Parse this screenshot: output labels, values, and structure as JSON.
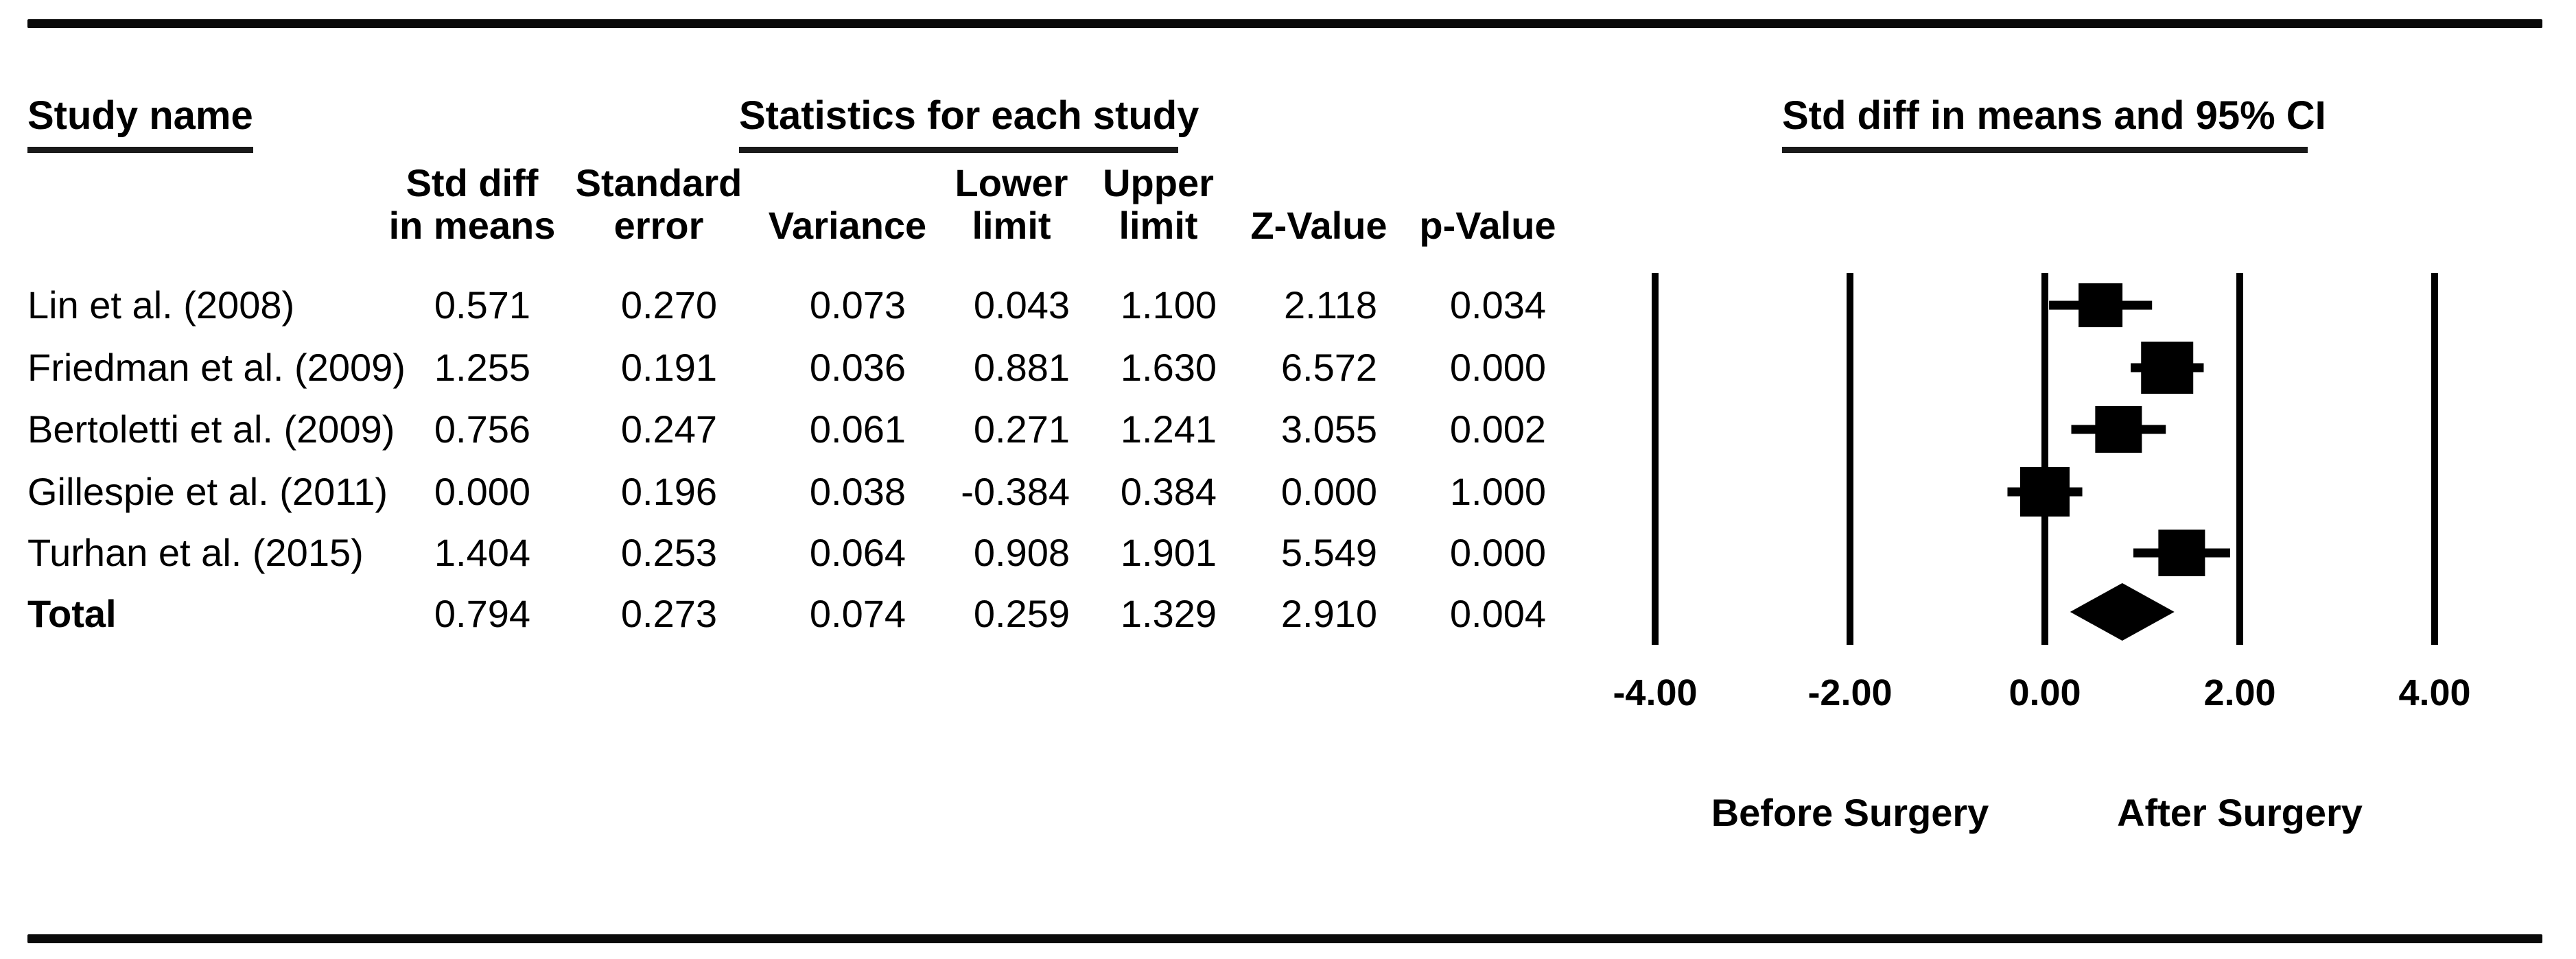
{
  "colors": {
    "ink": "#000000",
    "background": "#ffffff"
  },
  "sections": {
    "study_header": "Study name",
    "statistics_header": "Statistics for each study",
    "plot_header": "Std diff in means and 95% CI"
  },
  "table": {
    "column_headers": [
      {
        "line1": "Std diff",
        "line2": "in means"
      },
      {
        "line1": "Standard",
        "line2": "error"
      },
      {
        "line1": "",
        "line2": "Variance"
      },
      {
        "line1": "Lower",
        "line2": "limit"
      },
      {
        "line1": "Upper",
        "line2": "limit"
      },
      {
        "line1": "",
        "line2": "Z-Value"
      },
      {
        "line1": "",
        "line2": "p-Value"
      }
    ],
    "rows": [
      {
        "study": "Lin et al. (2008)",
        "std_diff": "0.571",
        "standard_error": "0.270",
        "variance": "0.073",
        "lower_limit": "0.043",
        "upper_limit": "1.100",
        "z_value": "2.118",
        "p_value": "0.034",
        "bold": false
      },
      {
        "study": "Friedman et al. (2009)",
        "std_diff": "1.255",
        "standard_error": "0.191",
        "variance": "0.036",
        "lower_limit": "0.881",
        "upper_limit": "1.630",
        "z_value": "6.572",
        "p_value": "0.000",
        "bold": false
      },
      {
        "study": "Bertoletti et al. (2009)",
        "std_diff": "0.756",
        "standard_error": "0.247",
        "variance": "0.061",
        "lower_limit": "0.271",
        "upper_limit": "1.241",
        "z_value": "3.055",
        "p_value": "0.002",
        "bold": false
      },
      {
        "study": "Gillespie et al. (2011)",
        "std_diff": "0.000",
        "standard_error": "0.196",
        "variance": "0.038",
        "lower_limit": "-0.384",
        "upper_limit": "0.384",
        "z_value": "0.000",
        "p_value": "1.000",
        "bold": false
      },
      {
        "study": "Turhan et al. (2015)",
        "std_diff": "1.404",
        "standard_error": "0.253",
        "variance": "0.064",
        "lower_limit": "0.908",
        "upper_limit": "1.901",
        "z_value": "5.549",
        "p_value": "0.000",
        "bold": false
      },
      {
        "study": "Total",
        "std_diff": "0.794",
        "standard_error": "0.273",
        "variance": "0.074",
        "lower_limit": "0.259",
        "upper_limit": "1.329",
        "z_value": "2.910",
        "p_value": "0.004",
        "bold": true
      }
    ]
  },
  "chart_data": {
    "type": "scatter",
    "subtype": "forest-plot",
    "title": "Std diff in means and 95% CI",
    "xlim": [
      -4,
      4
    ],
    "grid": "vertical reference lines at every tick",
    "legend_position": "none",
    "axis_ticks": [
      {
        "value": -4,
        "label": "-4.00"
      },
      {
        "value": -2,
        "label": "-2.00"
      },
      {
        "value": 0,
        "label": "0.00"
      },
      {
        "value": 2,
        "label": "2.00"
      },
      {
        "value": 4,
        "label": "4.00"
      }
    ],
    "direction_labels": {
      "left": {
        "text": "Before Surgery",
        "anchor_value": -2
      },
      "right": {
        "text": "After Surgery",
        "anchor_value": 2
      }
    },
    "studies": [
      {
        "name": "Lin et al. (2008)",
        "mean": 0.571,
        "lower": 0.043,
        "upper": 1.1,
        "marker": "square",
        "marker_px": 64
      },
      {
        "name": "Friedman et al. (2009)",
        "mean": 1.255,
        "lower": 0.881,
        "upper": 1.63,
        "marker": "square",
        "marker_px": 76
      },
      {
        "name": "Bertoletti et al. (2009)",
        "mean": 0.756,
        "lower": 0.271,
        "upper": 1.241,
        "marker": "square",
        "marker_px": 68
      },
      {
        "name": "Gillespie et al. (2011)",
        "mean": 0.0,
        "lower": -0.384,
        "upper": 0.384,
        "marker": "square",
        "marker_px": 72
      },
      {
        "name": "Turhan et al. (2015)",
        "mean": 1.404,
        "lower": 0.908,
        "upper": 1.901,
        "marker": "square",
        "marker_px": 68
      }
    ],
    "total": {
      "name": "Total",
      "mean": 0.794,
      "lower": 0.259,
      "upper": 1.329,
      "marker": "diamond"
    }
  }
}
